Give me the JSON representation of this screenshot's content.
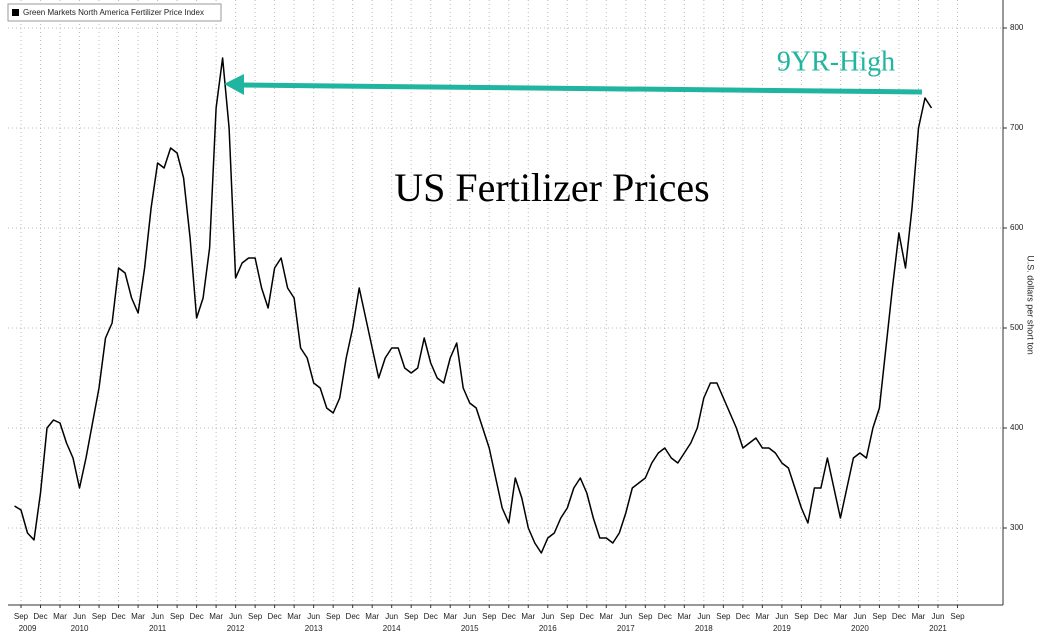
{
  "chart_data": {
    "type": "line",
    "title": "US Fertilizer Prices",
    "annotations": [
      "9YR-High"
    ],
    "y_label": "U.S. dollars per short ton",
    "x": [
      "2009-08",
      "2009-09",
      "2009-10",
      "2009-11",
      "2009-12",
      "2010-01",
      "2010-02",
      "2010-03",
      "2010-04",
      "2010-05",
      "2010-06",
      "2010-07",
      "2010-08",
      "2010-09",
      "2010-10",
      "2010-11",
      "2010-12",
      "2011-01",
      "2011-02",
      "2011-03",
      "2011-04",
      "2011-05",
      "2011-06",
      "2011-07",
      "2011-08",
      "2011-09",
      "2011-10",
      "2011-11",
      "2011-12",
      "2012-01",
      "2012-02",
      "2012-03",
      "2012-04",
      "2012-05",
      "2012-06",
      "2012-07",
      "2012-08",
      "2012-09",
      "2012-10",
      "2012-11",
      "2012-12",
      "2013-01",
      "2013-02",
      "2013-03",
      "2013-04",
      "2013-05",
      "2013-06",
      "2013-07",
      "2013-08",
      "2013-09",
      "2013-10",
      "2013-11",
      "2013-12",
      "2014-01",
      "2014-02",
      "2014-03",
      "2014-04",
      "2014-05",
      "2014-06",
      "2014-07",
      "2014-08",
      "2014-09",
      "2014-10",
      "2014-11",
      "2014-12",
      "2015-01",
      "2015-02",
      "2015-03",
      "2015-04",
      "2015-05",
      "2015-06",
      "2015-07",
      "2015-08",
      "2015-09",
      "2015-10",
      "2015-11",
      "2015-12",
      "2016-01",
      "2016-02",
      "2016-03",
      "2016-04",
      "2016-05",
      "2016-06",
      "2016-07",
      "2016-08",
      "2016-09",
      "2016-10",
      "2016-11",
      "2016-12",
      "2017-01",
      "2017-02",
      "2017-03",
      "2017-04",
      "2017-05",
      "2017-06",
      "2017-07",
      "2017-08",
      "2017-09",
      "2017-10",
      "2017-11",
      "2017-12",
      "2018-01",
      "2018-02",
      "2018-03",
      "2018-04",
      "2018-05",
      "2018-06",
      "2018-07",
      "2018-08",
      "2018-09",
      "2018-10",
      "2018-11",
      "2018-12",
      "2019-01",
      "2019-02",
      "2019-03",
      "2019-04",
      "2019-05",
      "2019-06",
      "2019-07",
      "2019-08",
      "2019-09",
      "2019-10",
      "2019-11",
      "2019-12",
      "2020-01",
      "2020-02",
      "2020-03",
      "2020-04",
      "2020-05",
      "2020-06",
      "2020-07",
      "2020-08",
      "2020-09",
      "2020-10",
      "2020-11",
      "2020-12",
      "2021-01",
      "2021-02",
      "2021-03",
      "2021-04",
      "2021-05"
    ],
    "series": [
      {
        "name": "Green Markets North America Fertilizer Price Index",
        "color": "#000000",
        "values": [
          322,
          318,
          295,
          288,
          335,
          400,
          408,
          405,
          385,
          370,
          340,
          370,
          405,
          440,
          490,
          505,
          560,
          555,
          530,
          515,
          560,
          620,
          665,
          660,
          680,
          675,
          650,
          590,
          510,
          530,
          580,
          720,
          770,
          700,
          550,
          565,
          570,
          570,
          540,
          520,
          560,
          570,
          540,
          530,
          480,
          470,
          445,
          440,
          420,
          415,
          430,
          470,
          500,
          540,
          510,
          480,
          450,
          470,
          480,
          480,
          460,
          455,
          460,
          490,
          465,
          450,
          445,
          470,
          485,
          440,
          425,
          420,
          400,
          380,
          350,
          320,
          305,
          350,
          330,
          300,
          285,
          275,
          290,
          295,
          310,
          320,
          340,
          350,
          335,
          310,
          290,
          290,
          285,
          295,
          315,
          340,
          345,
          350,
          365,
          375,
          380,
          370,
          365,
          375,
          385,
          400,
          430,
          445,
          445,
          430,
          415,
          400,
          380,
          385,
          390,
          380,
          380,
          375,
          365,
          360,
          340,
          320,
          305,
          340,
          340,
          370,
          340,
          310,
          340,
          370,
          375,
          370,
          400,
          420,
          480,
          540,
          595,
          560,
          620,
          700,
          730,
          720
        ]
      }
    ],
    "xlim": [
      "2009-07",
      "2022-04"
    ],
    "xticks": [
      {
        "value": "2009-09",
        "label": "Sep"
      },
      {
        "value": "2009-12",
        "label": "Dec"
      },
      {
        "value": "2010-03",
        "label": "Mar"
      },
      {
        "value": "2010-06",
        "label": "Jun"
      },
      {
        "value": "2010-09",
        "label": "Sep"
      },
      {
        "value": "2010-12",
        "label": "Dec"
      },
      {
        "value": "2011-03",
        "label": "Mar"
      },
      {
        "value": "2011-06",
        "label": "Jun"
      },
      {
        "value": "2011-09",
        "label": "Sep"
      },
      {
        "value": "2011-12",
        "label": "Dec"
      },
      {
        "value": "2012-03",
        "label": "Mar"
      },
      {
        "value": "2012-06",
        "label": "Jun"
      },
      {
        "value": "2012-09",
        "label": "Sep"
      },
      {
        "value": "2012-12",
        "label": "Dec"
      },
      {
        "value": "2013-03",
        "label": "Mar"
      },
      {
        "value": "2013-06",
        "label": "Jun"
      },
      {
        "value": "2013-09",
        "label": "Sep"
      },
      {
        "value": "2013-12",
        "label": "Dec"
      },
      {
        "value": "2014-03",
        "label": "Mar"
      },
      {
        "value": "2014-06",
        "label": "Jun"
      },
      {
        "value": "2014-09",
        "label": "Sep"
      },
      {
        "value": "2014-12",
        "label": "Dec"
      },
      {
        "value": "2015-03",
        "label": "Mar"
      },
      {
        "value": "2015-06",
        "label": "Jun"
      },
      {
        "value": "2015-09",
        "label": "Sep"
      },
      {
        "value": "2015-12",
        "label": "Dec"
      },
      {
        "value": "2016-03",
        "label": "Mar"
      },
      {
        "value": "2016-06",
        "label": "Jun"
      },
      {
        "value": "2016-09",
        "label": "Sep"
      },
      {
        "value": "2016-12",
        "label": "Dec"
      },
      {
        "value": "2017-03",
        "label": "Mar"
      },
      {
        "value": "2017-06",
        "label": "Jun"
      },
      {
        "value": "2017-09",
        "label": "Sep"
      },
      {
        "value": "2017-12",
        "label": "Dec"
      },
      {
        "value": "2018-03",
        "label": "Mar"
      },
      {
        "value": "2018-06",
        "label": "Jun"
      },
      {
        "value": "2018-09",
        "label": "Sep"
      },
      {
        "value": "2018-12",
        "label": "Dec"
      },
      {
        "value": "2019-03",
        "label": "Mar"
      },
      {
        "value": "2019-06",
        "label": "Jun"
      },
      {
        "value": "2019-09",
        "label": "Sep"
      },
      {
        "value": "2019-12",
        "label": "Dec"
      },
      {
        "value": "2020-03",
        "label": "Mar"
      },
      {
        "value": "2020-06",
        "label": "Jun"
      },
      {
        "value": "2020-09",
        "label": "Sep"
      },
      {
        "value": "2020-12",
        "label": "Dec"
      },
      {
        "value": "2021-03",
        "label": "Mar"
      },
      {
        "value": "2021-06",
        "label": "Jun"
      },
      {
        "value": "2021-09",
        "label": "Sep"
      }
    ],
    "year_labels": [
      {
        "value": "2009-10",
        "label": "2009"
      },
      {
        "value": "2010-06",
        "label": "2010"
      },
      {
        "value": "2011-06",
        "label": "2011"
      },
      {
        "value": "2012-06",
        "label": "2012"
      },
      {
        "value": "2013-06",
        "label": "2013"
      },
      {
        "value": "2014-06",
        "label": "2014"
      },
      {
        "value": "2015-06",
        "label": "2015"
      },
      {
        "value": "2016-06",
        "label": "2016"
      },
      {
        "value": "2017-06",
        "label": "2017"
      },
      {
        "value": "2018-06",
        "label": "2018"
      },
      {
        "value": "2019-06",
        "label": "2019"
      },
      {
        "value": "2020-06",
        "label": "2020"
      },
      {
        "value": "2021-06",
        "label": "2021"
      }
    ],
    "ylim": [
      223,
      828
    ],
    "yticks": [
      300,
      400,
      500,
      600,
      700,
      800
    ],
    "grid": true,
    "legend": "top-left",
    "annotation_color": "#1fb5a0"
  }
}
